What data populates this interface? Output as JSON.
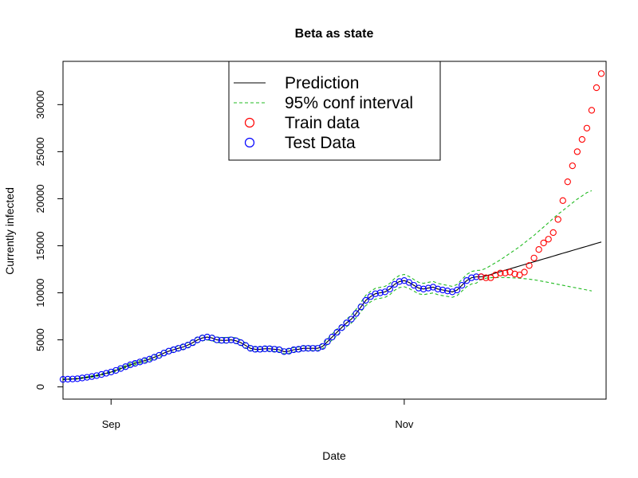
{
  "chart_data": {
    "type": "line",
    "title": "Beta as state",
    "xlabel": "Date",
    "ylabel": "Currently infected",
    "x_tick_labels": [
      {
        "label": "Sep",
        "date": "2020-09-01"
      },
      {
        "label": "Nov",
        "date": "2020-11-01"
      }
    ],
    "y_ticks": [
      0,
      5000,
      10000,
      15000,
      20000,
      25000,
      30000
    ],
    "xlim": [
      "2020-08-22",
      "2020-12-13"
    ],
    "ylim": [
      -1300,
      34600
    ],
    "grid": false,
    "legend_position": "top-center",
    "legend": [
      {
        "label": "Prediction",
        "style": "line",
        "color": "#000000"
      },
      {
        "label": "95% conf interval",
        "style": "dashed",
        "color": "#22bb22"
      },
      {
        "label": "Train data",
        "style": "circle",
        "color": "#ff0000"
      },
      {
        "label": "Test Data",
        "style": "circle",
        "color": "#0000ff"
      }
    ],
    "start_date": "2020-08-22",
    "series": [
      {
        "name": "Test Data",
        "color": "#0000ff",
        "style": "circle",
        "values": [
          800,
          820,
          840,
          870,
          950,
          1020,
          1100,
          1200,
          1320,
          1450,
          1580,
          1750,
          1950,
          2150,
          2350,
          2500,
          2650,
          2800,
          2950,
          3150,
          3350,
          3600,
          3800,
          3950,
          4100,
          4250,
          4450,
          4700,
          5000,
          5200,
          5300,
          5200,
          5000,
          4950,
          4950,
          5000,
          4900,
          4700,
          4400,
          4100,
          4000,
          4000,
          4050,
          4050,
          4000,
          3950,
          3750,
          3800,
          3950,
          4000,
          4100,
          4100,
          4100,
          4100,
          4300,
          4800,
          5300,
          5800,
          6300,
          6800,
          7200,
          7800,
          8500,
          9200,
          9600,
          9900,
          10000,
          10100,
          10400,
          10900,
          11200,
          11300,
          11100,
          10800,
          10500,
          10400,
          10500,
          10600,
          10400,
          10300,
          10200,
          10100,
          10300,
          10800,
          11300,
          11600,
          11700,
          11700
        ]
      },
      {
        "name": "Train data",
        "color": "#ff0000",
        "style": "circle",
        "start_date": "2020-11-17",
        "values": [
          11700,
          11600,
          11600,
          11900,
          12100,
          12100,
          12200,
          12000,
          11900,
          12200,
          12900,
          13700,
          14600,
          15300,
          15700,
          16400,
          17800,
          19800,
          21800,
          23500,
          25000,
          26300,
          27500,
          29400,
          31800,
          33300
        ]
      },
      {
        "name": "Prediction",
        "color": "#000000",
        "style": "line",
        "values": [
          800,
          820,
          840,
          870,
          950,
          1020,
          1100,
          1200,
          1320,
          1450,
          1580,
          1750,
          1950,
          2150,
          2350,
          2500,
          2650,
          2800,
          2950,
          3150,
          3350,
          3600,
          3800,
          3950,
          4100,
          4250,
          4450,
          4700,
          5000,
          5200,
          5300,
          5200,
          5000,
          4950,
          4950,
          5000,
          4900,
          4700,
          4400,
          4100,
          4000,
          4000,
          4050,
          4050,
          4000,
          3950,
          3750,
          3800,
          3950,
          4000,
          4100,
          4100,
          4100,
          4100,
          4300,
          4800,
          5300,
          5800,
          6300,
          6800,
          7200,
          7800,
          8500,
          9200,
          9600,
          9900,
          10000,
          10100,
          10400,
          10900,
          11200,
          11300,
          11100,
          10800,
          10500,
          10400,
          10500,
          10600,
          10400,
          10300,
          10200,
          10100,
          10300,
          10800,
          11300,
          11600,
          11700,
          11700,
          11800,
          11950,
          12100,
          12250,
          12400,
          12550,
          12700,
          12850,
          13000,
          13150,
          13300,
          13450,
          13600,
          13750,
          13900,
          14050,
          14200,
          14350,
          14500,
          14650,
          14800,
          14950,
          15100,
          15250,
          15400
        ]
      },
      {
        "name": "95% conf interval upper",
        "color": "#22bb22",
        "style": "dashed",
        "values": [
          850,
          870,
          890,
          920,
          1000,
          1080,
          1170,
          1280,
          1400,
          1540,
          1680,
          1860,
          2070,
          2280,
          2490,
          2650,
          2810,
          2970,
          3130,
          3340,
          3560,
          3820,
          4030,
          4190,
          4350,
          4510,
          4720,
          4990,
          5300,
          5500,
          5600,
          5500,
          5300,
          5250,
          5250,
          5300,
          5200,
          5000,
          4650,
          4350,
          4250,
          4250,
          4300,
          4300,
          4250,
          4200,
          3980,
          4030,
          4190,
          4240,
          4350,
          4350,
          4350,
          4350,
          4560,
          5080,
          5610,
          6140,
          6670,
          7200,
          7620,
          8250,
          9000,
          9740,
          10160,
          10480,
          10580,
          10680,
          11000,
          11530,
          11840,
          11950,
          11740,
          11420,
          11110,
          11000,
          11110,
          11210,
          11000,
          10890,
          10780,
          10680,
          10890,
          11420,
          11950,
          12260,
          12370,
          12400,
          12600,
          12900,
          13200,
          13500,
          13850,
          14200,
          14550,
          14900,
          15300,
          15700,
          16100,
          16550,
          17000,
          17450,
          17900,
          18350,
          18750,
          19150,
          19550,
          19950,
          20300,
          20650,
          20850
        ]
      },
      {
        "name": "95% conf interval lower",
        "color": "#22bb22",
        "style": "dashed",
        "values": [
          760,
          780,
          800,
          830,
          900,
          970,
          1040,
          1130,
          1250,
          1370,
          1490,
          1650,
          1840,
          2030,
          2220,
          2360,
          2500,
          2640,
          2780,
          2970,
          3160,
          3400,
          3580,
          3720,
          3860,
          4000,
          4190,
          4420,
          4700,
          4900,
          5000,
          4900,
          4720,
          4670,
          4670,
          4720,
          4620,
          4430,
          4150,
          3870,
          3770,
          3770,
          3810,
          3810,
          3770,
          3720,
          3530,
          3580,
          3720,
          3770,
          3860,
          3860,
          3860,
          3860,
          4050,
          4520,
          4990,
          5460,
          5930,
          6400,
          6780,
          7350,
          8000,
          8660,
          9040,
          9330,
          9420,
          9520,
          9800,
          10270,
          10560,
          10650,
          10460,
          10180,
          9890,
          9800,
          9890,
          9990,
          9800,
          9700,
          9610,
          9520,
          9710,
          10180,
          10650,
          10940,
          11030,
          11450,
          11550,
          11600,
          11620,
          11630,
          11620,
          11600,
          11580,
          11550,
          11500,
          11450,
          11380,
          11300,
          11200,
          11100,
          11000,
          10900,
          10800,
          10700,
          10600,
          10500,
          10400,
          10300,
          10200
        ]
      }
    ]
  }
}
